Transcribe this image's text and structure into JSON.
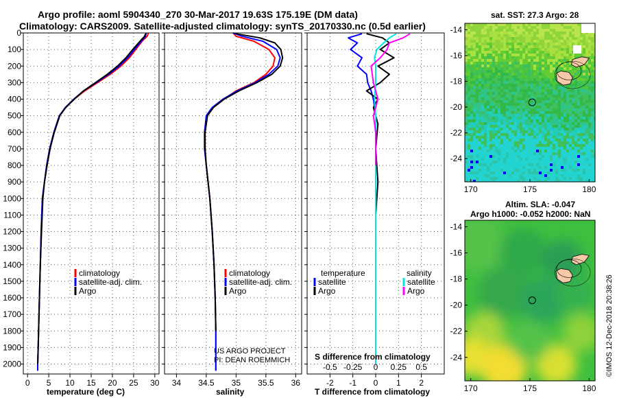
{
  "header": {
    "title_line1": "Argo profile: aoml 5904340_270 30-Mar-2017 19.63S 175.19E (DM data)",
    "title_line2": "Climatology: CARS2009. Satellite-adjusted climatology: synTS_20170330.nc (0.5d earlier)"
  },
  "credits": {
    "project": "US ARGO PROJECT",
    "pi": "PI: DEAN ROEMMICH",
    "imos": "©IMOS 12-Dec-2018 20:38:26"
  },
  "colors": {
    "climatology": "#ff0000",
    "satellite": "#0000ff",
    "argo": "#000000",
    "sat_salinity": "#00e5e5",
    "argo_salinity": "#ff00ff"
  },
  "chart_data": [
    {
      "type": "line",
      "xlabel": "temperature (deg C)",
      "ylabel": "",
      "xlim": [
        -1,
        31
      ],
      "ylim": [
        2060,
        0
      ],
      "xticks": [
        0,
        5,
        10,
        15,
        20,
        25,
        30
      ],
      "yticks": [
        0,
        100,
        200,
        300,
        400,
        500,
        600,
        700,
        800,
        900,
        1000,
        1100,
        1200,
        1300,
        1400,
        1500,
        1600,
        1700,
        1800,
        1900,
        2000
      ],
      "legend": [
        "climatology",
        "satellite-adj. clim.",
        "Argo"
      ],
      "series": [
        {
          "name": "climatology",
          "color": "#ff0000",
          "x": [
            28.5,
            28.2,
            27.0,
            25.5,
            24.0,
            22.0,
            19.5,
            16.5,
            13.5,
            11.0,
            9.0,
            7.5,
            6.2,
            5.2,
            4.5,
            4.0,
            3.5,
            3.2,
            3.0,
            2.8,
            2.6,
            2.5,
            2.4,
            2.4
          ],
          "y": [
            0,
            20,
            50,
            100,
            150,
            200,
            250,
            300,
            350,
            400,
            450,
            500,
            600,
            700,
            800,
            900,
            1000,
            1200,
            1400,
            1600,
            1800,
            1900,
            2000,
            2040
          ]
        },
        {
          "name": "satellite-adj. clim.",
          "color": "#0000ff",
          "x": [
            28.0,
            27.8,
            26.8,
            25.2,
            23.6,
            21.6,
            19.1,
            16.2,
            13.2,
            10.9,
            8.9,
            7.5,
            6.2,
            5.2,
            4.5,
            4.0,
            3.5,
            3.2,
            3.0,
            2.8,
            2.6,
            2.5,
            2.4,
            2.4
          ],
          "y": [
            0,
            20,
            50,
            100,
            150,
            200,
            250,
            300,
            350,
            400,
            450,
            500,
            600,
            700,
            800,
            900,
            1000,
            1200,
            1400,
            1600,
            1800,
            1900,
            2000,
            2040
          ]
        },
        {
          "name": "Argo",
          "color": "#000000",
          "x": [
            27.8,
            27.6,
            26.5,
            24.8,
            23.2,
            21.2,
            18.8,
            16.0,
            13.2,
            11.0,
            9.0,
            7.6,
            6.3,
            5.3,
            4.6,
            4.0,
            3.6,
            3.3,
            3.0,
            2.8,
            2.6,
            2.5,
            2.4
          ],
          "y": [
            5,
            20,
            50,
            100,
            150,
            200,
            250,
            300,
            350,
            400,
            450,
            500,
            600,
            700,
            800,
            900,
            1000,
            1200,
            1400,
            1600,
            1800,
            1900,
            2000
          ]
        }
      ]
    },
    {
      "type": "line",
      "xlabel": "salinity",
      "ylabel": "",
      "xlim": [
        33.8,
        36.1
      ],
      "ylim": [
        2060,
        0
      ],
      "xticks": [
        34,
        34.5,
        35,
        35.5,
        36
      ],
      "legend": [
        "climatology",
        "satellite-adj. clim.",
        "Argo"
      ],
      "series": [
        {
          "name": "climatology",
          "color": "#ff0000",
          "x": [
            34.95,
            35.0,
            35.3,
            35.55,
            35.65,
            35.62,
            35.5,
            35.3,
            35.0,
            34.8,
            34.62,
            34.52,
            34.48,
            34.48,
            34.5,
            34.53,
            34.56,
            34.6,
            34.63,
            34.65,
            34.66,
            34.66
          ],
          "y": [
            0,
            20,
            50,
            100,
            150,
            200,
            250,
            300,
            350,
            400,
            450,
            500,
            600,
            700,
            800,
            900,
            1000,
            1200,
            1400,
            1600,
            1800,
            2040
          ]
        },
        {
          "name": "satellite-adj. clim.",
          "color": "#0000ff",
          "x": [
            34.95,
            35.1,
            35.45,
            35.68,
            35.74,
            35.7,
            35.55,
            35.32,
            35.02,
            34.78,
            34.6,
            34.5,
            34.47,
            34.47,
            34.5,
            34.53,
            34.56,
            34.6,
            34.63,
            34.65,
            34.66,
            34.66
          ],
          "y": [
            0,
            20,
            50,
            100,
            150,
            200,
            250,
            300,
            350,
            400,
            450,
            500,
            600,
            700,
            800,
            900,
            1000,
            1200,
            1400,
            1600,
            1800,
            2040
          ]
        },
        {
          "name": "Argo",
          "color": "#000000",
          "x": [
            35.0,
            35.4,
            35.65,
            35.75,
            35.78,
            35.74,
            35.6,
            35.35,
            35.05,
            34.8,
            34.62,
            34.52,
            34.48,
            34.48,
            34.5,
            34.53,
            34.56,
            34.6,
            34.63,
            34.65,
            34.66
          ],
          "y": [
            5,
            30,
            60,
            100,
            150,
            200,
            250,
            300,
            350,
            400,
            450,
            500,
            600,
            700,
            800,
            900,
            1000,
            1200,
            1400,
            1600,
            1800
          ]
        }
      ]
    },
    {
      "type": "line",
      "xlabel": "T difference from climatology",
      "xlabel2": "S difference from climatology",
      "ylabel": "",
      "xlim": [
        -3,
        3
      ],
      "ylim": [
        2060,
        0
      ],
      "xticks": [
        -2,
        -1,
        0,
        1,
        2
      ],
      "xticks2": [
        "-0.5",
        "-0.25",
        "0",
        "0.25",
        "0.5"
      ],
      "legend_left_title": "temperature",
      "legend_right_title": "salinity",
      "legend": [
        "satellite",
        "Argo",
        "satellite",
        "Argo"
      ],
      "series": [
        {
          "name": "satellite",
          "group": "temperature",
          "color": "#0000ff",
          "x": [
            -0.6,
            -1.2,
            -0.8,
            -1.1,
            -0.6,
            -0.8,
            -0.4,
            -0.35,
            -0.2,
            -0.1,
            0.0,
            0.0,
            0.0,
            0.0,
            0.0,
            0.0,
            0.0
          ],
          "y": [
            5,
            30,
            60,
            100,
            150,
            200,
            250,
            300,
            350,
            400,
            500,
            600,
            800,
            1000,
            1400,
            1800,
            2000
          ]
        },
        {
          "name": "Argo",
          "group": "temperature",
          "color": "#000000",
          "x": [
            -0.4,
            0.3,
            0.6,
            0.2,
            0.8,
            0.1,
            0.6,
            0.2,
            -0.4,
            0.1,
            -0.1,
            0.1,
            0.0,
            0.1,
            0.0,
            0.0,
            0.0,
            0.0
          ],
          "y": [
            5,
            30,
            60,
            100,
            150,
            200,
            250,
            300,
            350,
            400,
            450,
            550,
            700,
            900,
            1100,
            1300,
            1600,
            1800
          ]
        },
        {
          "name": "satellite",
          "group": "salinity",
          "color": "#00e5e5",
          "x": [
            0.9,
            0.6,
            0.35,
            0.05,
            -0.05,
            0.0,
            0.0,
            -0.05,
            0.0,
            0.0,
            0.0,
            0.0,
            0.0,
            0.0,
            0.0
          ],
          "y": [
            5,
            30,
            60,
            100,
            150,
            200,
            300,
            400,
            500,
            600,
            800,
            1000,
            1400,
            1800,
            2000
          ]
        },
        {
          "name": "Argo",
          "group": "salinity",
          "color": "#ff00ff",
          "x": [
            1.5,
            1.2,
            0.6,
            0.5,
            0.2,
            -0.2,
            -0.1,
            0.1,
            -0.1,
            0.0,
            0.0,
            0.0
          ],
          "y": [
            5,
            30,
            60,
            100,
            150,
            200,
            300,
            400,
            500,
            600,
            700,
            800
          ]
        }
      ]
    },
    {
      "type": "heatmap",
      "title": "sat. SST: 27.3 Argo: 28",
      "xlim": [
        169.5,
        180.5
      ],
      "ylim": [
        -25.8,
        -13.5
      ],
      "xticks": [
        170,
        175,
        180
      ],
      "yticks": [
        -14,
        -16,
        -18,
        -20,
        -22,
        -24
      ],
      "marker": {
        "x": 175.19,
        "y": -19.63
      }
    },
    {
      "type": "heatmap",
      "title": "Altim. SLA: -0.047",
      "subtitle": "Argo h1000: -0.052 h2000: NaN",
      "xlim": [
        169.5,
        180.5
      ],
      "ylim": [
        -25.8,
        -13.5
      ],
      "xticks": [
        170,
        175,
        180
      ],
      "yticks": [
        -14,
        -16,
        -18,
        -20,
        -22,
        -24
      ],
      "marker": {
        "x": 175.19,
        "y": -19.63
      }
    }
  ]
}
